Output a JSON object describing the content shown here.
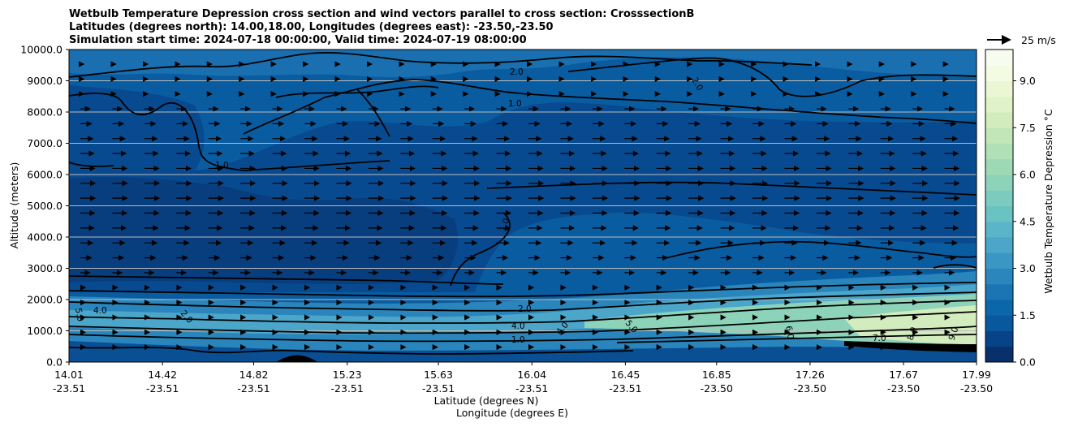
{
  "chart_data": {
    "type": "heatmap",
    "title_lines": [
      "Wetbulb Temperature Depression cross section and wind vectors parallel to cross section: CrosssectionB",
      "Latitudes (degrees north): 14.00,18.00, Longitudes (degrees east): -23.50,-23.50",
      "Simulation start time: 2024-07-18 00:00:00, Valid time: 2024-07-19 08:00:00"
    ],
    "xlabel": "Latitude (degrees N)",
    "xlabel2": "Longitude (degrees E)",
    "ylabel": "Altitude (meters)",
    "xlim": [
      14.01,
      17.99
    ],
    "ylim": [
      0,
      10000
    ],
    "x_ticks": [
      {
        "lat": "14.01",
        "lon": "-23.51",
        "value": 14.01
      },
      {
        "lat": "14.42",
        "lon": "-23.51",
        "value": 14.42
      },
      {
        "lat": "14.82",
        "lon": "-23.51",
        "value": 14.82
      },
      {
        "lat": "15.23",
        "lon": "-23.51",
        "value": 15.23
      },
      {
        "lat": "15.63",
        "lon": "-23.51",
        "value": 15.63
      },
      {
        "lat": "16.04",
        "lon": "-23.51",
        "value": 16.04
      },
      {
        "lat": "16.45",
        "lon": "-23.51",
        "value": 16.45
      },
      {
        "lat": "16.85",
        "lon": "-23.50",
        "value": 16.85
      },
      {
        "lat": "17.26",
        "lon": "-23.50",
        "value": 17.26
      },
      {
        "lat": "17.67",
        "lon": "-23.50",
        "value": 17.67
      },
      {
        "lat": "17.99",
        "lon": "-23.50",
        "value": 17.99
      }
    ],
    "y_ticks": [
      "0.0",
      "1000.0",
      "2000.0",
      "3000.0",
      "4000.0",
      "5000.0",
      "6000.0",
      "7000.0",
      "8000.0",
      "9000.0",
      "10000.0"
    ],
    "colorbar": {
      "label": "Wetbulb Temperature Depression °C",
      "range": [
        0,
        10
      ],
      "ticks": [
        "0.0",
        "1.5",
        "3.0",
        "4.5",
        "6.0",
        "7.5",
        "9.0"
      ],
      "colors": [
        "#08306b",
        "#084388",
        "#08589e",
        "#0b67a9",
        "#1b75b4",
        "#2b86bd",
        "#3a96c4",
        "#4ba6c9",
        "#5ab5c8",
        "#6ac2c3",
        "#7bcbbf",
        "#8cd3ba",
        "#9ed9b6",
        "#b0e0b5",
        "#c2e6b8",
        "#d2ecbe",
        "#e0f2c8",
        "#ebf7d4",
        "#f3fbe2",
        "#f7fcf0"
      ]
    },
    "contour_labels": [
      "1.0",
      "2.0",
      "4.0",
      "5.0",
      "6.0",
      "7.0",
      "8.0",
      "9.0"
    ],
    "wind_quiver_key": "25 m/s",
    "grid": "horizontal"
  }
}
